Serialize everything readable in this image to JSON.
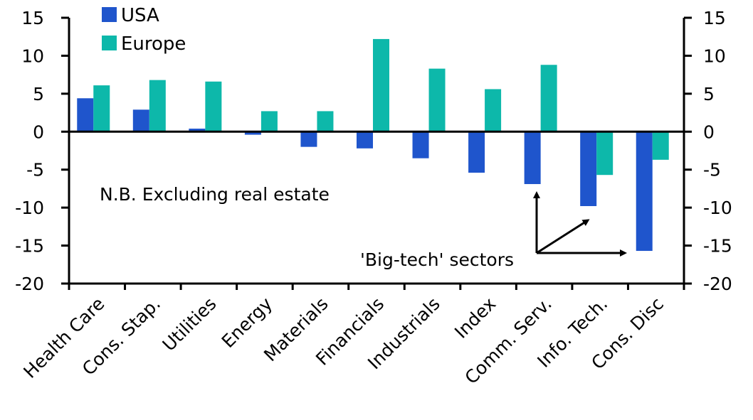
{
  "chart_data": {
    "type": "bar",
    "title": "",
    "xlabel": "",
    "ylabel": "",
    "ylim": [
      -20,
      15
    ],
    "yticks": [
      15,
      10,
      5,
      0,
      -5,
      -10,
      -15,
      -20
    ],
    "secondary_yaxis": true,
    "grid": false,
    "legend_position": "top-left",
    "categories": [
      "Health Care",
      "Cons. Stap.",
      "Utilities",
      "Energy",
      "Materials",
      "Financials",
      "Industrials",
      "Index",
      "Comm. Serv.",
      "Info. Tech.",
      "Cons. Disc"
    ],
    "series": [
      {
        "name": "USA",
        "color": "#1f55cc",
        "values": [
          4.4,
          2.9,
          0.4,
          -0.4,
          -2.0,
          -2.2,
          -3.5,
          -5.4,
          -6.9,
          -9.8,
          -15.7
        ]
      },
      {
        "name": "Europe",
        "color": "#0db8aa",
        "values": [
          6.1,
          6.8,
          6.6,
          2.7,
          2.7,
          12.2,
          8.3,
          5.6,
          8.8,
          -5.7,
          -3.7
        ]
      }
    ],
    "annotations": [
      {
        "text": "N.B. Excluding real estate"
      },
      {
        "text": "'Big-tech' sectors",
        "points_to": [
          "Comm. Serv.",
          "Info. Tech.",
          "Cons. Disc"
        ]
      }
    ]
  }
}
